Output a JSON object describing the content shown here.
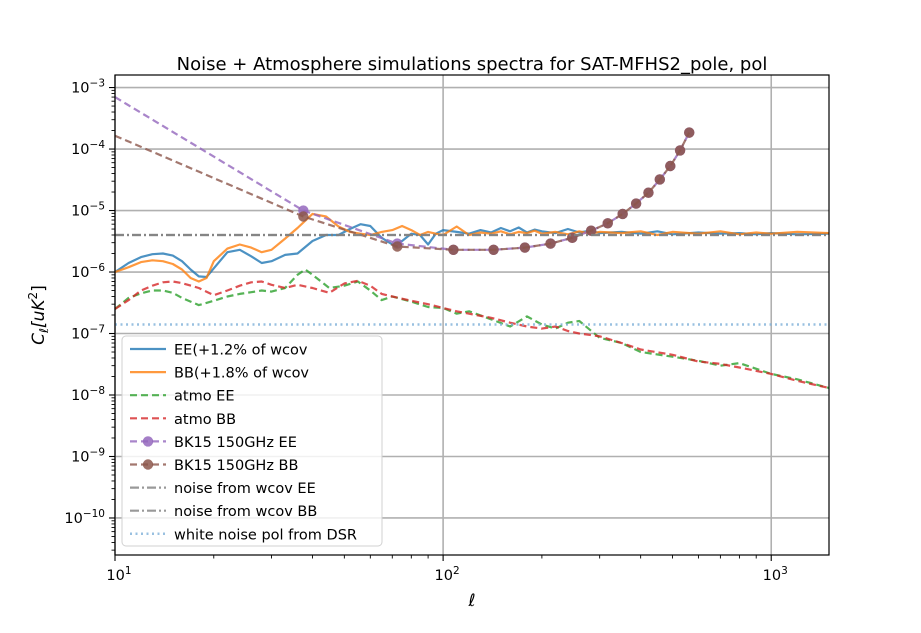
{
  "chart_data": {
    "type": "line",
    "title": "Noise + Atmosphere simulations spectra for SAT-MFHS2_pole, pol",
    "xlabel": "ℓ",
    "ylabel": "C_ℓ[uK^2]",
    "xscale": "log",
    "yscale": "log",
    "xlim": [
      10,
      1500
    ],
    "ylim": [
      2.5e-11,
      0.0016
    ],
    "grid": true,
    "legend_position": "lower-left",
    "x_ticks": [
      {
        "value": 10,
        "base": "10",
        "exp": "1"
      },
      {
        "value": 100,
        "base": "10",
        "exp": "2"
      },
      {
        "value": 1000,
        "base": "10",
        "exp": "3"
      }
    ],
    "y_ticks": [
      {
        "value": 1e-10,
        "base": "10",
        "exp": "−10"
      },
      {
        "value": 1e-09,
        "base": "10",
        "exp": "−9"
      },
      {
        "value": 1e-08,
        "base": "10",
        "exp": "−8"
      },
      {
        "value": 1e-07,
        "base": "10",
        "exp": "−7"
      },
      {
        "value": 1e-06,
        "base": "10",
        "exp": "−6"
      },
      {
        "value": 1e-05,
        "base": "10",
        "exp": "−5"
      },
      {
        "value": 0.0001,
        "base": "10",
        "exp": "−4"
      },
      {
        "value": 0.001,
        "base": "10",
        "exp": "−3"
      }
    ],
    "series": [
      {
        "name": "EE(+1.2% of wcov",
        "color": "#1f77b4",
        "style": "solid",
        "x": [
          10,
          11,
          12,
          13,
          14,
          15,
          16,
          17,
          18,
          19,
          20,
          22,
          24,
          26,
          28,
          30,
          33,
          36,
          40,
          44,
          48,
          52,
          56,
          60,
          65,
          70,
          75,
          80,
          85,
          90,
          95,
          100,
          110,
          120,
          130,
          140,
          150,
          160,
          170,
          180,
          190,
          200,
          220,
          240,
          260,
          280,
          300,
          350,
          400,
          450,
          500,
          600,
          700,
          800,
          900,
          1000,
          1200,
          1500
        ],
        "y": [
          1e-06,
          1.4e-06,
          1.75e-06,
          1.95e-06,
          2e-06,
          1.85e-06,
          1.5e-06,
          1.1e-06,
          8.5e-07,
          8.3e-07,
          1.15e-06,
          2.1e-06,
          2.3e-06,
          1.8e-06,
          1.4e-06,
          1.5e-06,
          1.9e-06,
          2e-06,
          3.2e-06,
          4e-06,
          4e-06,
          5e-06,
          6e-06,
          5.6e-06,
          3.6e-06,
          2.8e-06,
          3.2e-06,
          4.2e-06,
          4e-06,
          2.8e-06,
          4.2e-06,
          4.8e-06,
          4.5e-06,
          4.2e-06,
          4.8e-06,
          4.4e-06,
          5.2e-06,
          4.6e-06,
          5.3e-06,
          4.4e-06,
          4.9e-06,
          4.6e-06,
          4.3e-06,
          5e-06,
          4.4e-06,
          4.7e-06,
          4.3e-06,
          4.5e-06,
          4.2e-06,
          4.6e-06,
          4.1e-06,
          4.4e-06,
          4.2e-06,
          4.3e-06,
          4.1e-06,
          4.3e-06,
          4.1e-06,
          4.2e-06
        ]
      },
      {
        "name": "BB(+1.8% of wcov",
        "color": "#ff7f0e",
        "style": "solid",
        "x": [
          10,
          11,
          12,
          13,
          14,
          15,
          16,
          17,
          18,
          19,
          20,
          22,
          24,
          26,
          28,
          30,
          33,
          36,
          40,
          44,
          48,
          52,
          56,
          60,
          65,
          70,
          75,
          80,
          85,
          90,
          95,
          100,
          110,
          120,
          130,
          140,
          150,
          160,
          170,
          180,
          190,
          200,
          220,
          240,
          260,
          280,
          300,
          350,
          400,
          450,
          500,
          600,
          700,
          800,
          900,
          1000,
          1200,
          1500
        ],
        "y": [
          1e-06,
          1.2e-06,
          1.45e-06,
          1.55e-06,
          1.5e-06,
          1.35e-06,
          1.1e-06,
          8e-07,
          7e-07,
          8e-07,
          1.5e-06,
          2.4e-06,
          2.8e-06,
          2.5e-06,
          2.1e-06,
          2.3e-06,
          3.5e-06,
          5.2e-06,
          8.8e-06,
          8e-06,
          5.5e-06,
          4.5e-06,
          4.2e-06,
          4e-06,
          4.5e-06,
          4.8e-06,
          5.6e-06,
          4.8e-06,
          4e-06,
          4.5e-06,
          4.2e-06,
          4e-06,
          5.5e-06,
          4e-06,
          4.4e-06,
          4.2e-06,
          4.6e-06,
          4.1e-06,
          4.5e-06,
          4.3e-06,
          4.7e-06,
          4.2e-06,
          4.5e-06,
          4.1e-06,
          4.6e-06,
          4.2e-06,
          4.5e-06,
          4.3e-06,
          4.6e-06,
          4e-06,
          4.5e-06,
          4.2e-06,
          4.6e-06,
          4.1e-06,
          4.4e-06,
          4.2e-06,
          4.5e-06,
          4.3e-06
        ]
      },
      {
        "name": "atmo EE",
        "color": "#2ca02c",
        "style": "dashed",
        "x": [
          10,
          11,
          12,
          13,
          14,
          15,
          16,
          18,
          20,
          22,
          24,
          26,
          28,
          30,
          33,
          36,
          38,
          40,
          45,
          50,
          55,
          60,
          65,
          70,
          80,
          90,
          100,
          110,
          120,
          140,
          160,
          180,
          200,
          220,
          240,
          260,
          300,
          350,
          400,
          500,
          600,
          700,
          800,
          1000,
          1200,
          1500
        ],
        "y": [
          2.5e-07,
          3.8e-07,
          4.5e-07,
          5e-07,
          5e-07,
          4.6e-07,
          3.8e-07,
          2.9e-07,
          3.4e-07,
          4e-07,
          4.4e-07,
          4.7e-07,
          5e-07,
          4.8e-07,
          5.5e-07,
          9e-07,
          1.1e-06,
          9e-07,
          5.5e-07,
          6e-07,
          7e-07,
          5e-07,
          3.5e-07,
          4e-07,
          3.3e-07,
          2.7e-07,
          2.6e-07,
          2.1e-07,
          2.3e-07,
          1.7e-07,
          1.3e-07,
          1.9e-07,
          1.4e-07,
          1.2e-07,
          1.5e-07,
          1.6e-07,
          8.5e-08,
          7e-08,
          5e-08,
          4.2e-08,
          3.6e-08,
          3e-08,
          3.3e-08,
          2.2e-08,
          1.8e-08,
          1.3e-08
        ]
      },
      {
        "name": "atmo BB",
        "color": "#d62728",
        "style": "dashed",
        "x": [
          10,
          11,
          12,
          13,
          14,
          15,
          16,
          18,
          20,
          22,
          24,
          26,
          28,
          30,
          33,
          36,
          40,
          45,
          50,
          55,
          60,
          65,
          70,
          80,
          90,
          100,
          110,
          120,
          140,
          160,
          180,
          200,
          220,
          240,
          260,
          300,
          350,
          400,
          500,
          600,
          700,
          800,
          1000,
          1200,
          1500
        ],
        "y": [
          2.5e-07,
          3.5e-07,
          5e-07,
          6e-07,
          6.8e-07,
          7e-07,
          6.6e-07,
          5.5e-07,
          4.2e-07,
          5e-07,
          6e-07,
          6.8e-07,
          7e-07,
          6.2e-07,
          5.5e-07,
          6.2e-07,
          5.5e-07,
          4.6e-07,
          6.5e-07,
          7.2e-07,
          6e-07,
          4.4e-07,
          4e-07,
          3.4e-07,
          3e-07,
          2.6e-07,
          2.3e-07,
          2.1e-07,
          1.8e-07,
          1.5e-07,
          1.3e-07,
          1.2e-07,
          1.3e-07,
          1.1e-07,
          1e-07,
          9e-08,
          7e-08,
          5.5e-08,
          4.5e-08,
          3.5e-08,
          3.2e-08,
          2.8e-08,
          2.2e-08,
          1.7e-08,
          1.3e-08
        ]
      },
      {
        "name": "BK15 150GHz EE",
        "color": "#9467bd",
        "style": "dashed-markers",
        "line_x": [
          10,
          37.5
        ],
        "line_y": [
          0.0007,
          1e-05
        ],
        "x": [
          37.5,
          72.5,
          107.5,
          142.5,
          177.5,
          212.5,
          247.5,
          282.5,
          317.5,
          352.5,
          387.5,
          422.5,
          457.5,
          492.5,
          527.5,
          562.5
        ],
        "y": [
          1e-05,
          2.9e-06,
          2.3e-06,
          2.3e-06,
          2.5e-06,
          2.9e-06,
          3.6e-06,
          4.7e-06,
          6.2e-06,
          8.8e-06,
          1.3e-05,
          1.95e-05,
          3.2e-05,
          5.3e-05,
          9.5e-05,
          0.000185
        ]
      },
      {
        "name": "BK15 150GHz BB",
        "color": "#8c564b",
        "style": "dashed-markers",
        "line_x": [
          10,
          37.5
        ],
        "line_y": [
          0.000165,
          8e-06
        ],
        "x": [
          37.5,
          72.5,
          107.5,
          142.5,
          177.5,
          212.5,
          247.5,
          282.5,
          317.5,
          352.5,
          387.5,
          422.5,
          457.5,
          492.5,
          527.5,
          562.5
        ],
        "y": [
          8e-06,
          2.6e-06,
          2.3e-06,
          2.3e-06,
          2.5e-06,
          2.9e-06,
          3.6e-06,
          4.7e-06,
          6.2e-06,
          8.8e-06,
          1.3e-05,
          1.95e-05,
          3.2e-05,
          5.3e-05,
          9.5e-05,
          0.000185
        ]
      },
      {
        "name": "noise from wcov EE",
        "color": "#7f7f7f",
        "style": "dashdot",
        "x": [
          10,
          1500
        ],
        "y": [
          4e-06,
          4e-06
        ]
      },
      {
        "name": "noise from wcov BB",
        "color": "#7f7f7f",
        "style": "dashdot",
        "x": [
          10,
          1500
        ],
        "y": [
          4e-06,
          4e-06
        ]
      },
      {
        "name": "white noise pol from DSR",
        "color": "#7fb0d8",
        "style": "dotted",
        "x": [
          10,
          1500
        ],
        "y": [
          1.4e-07,
          1.4e-07
        ]
      }
    ]
  }
}
